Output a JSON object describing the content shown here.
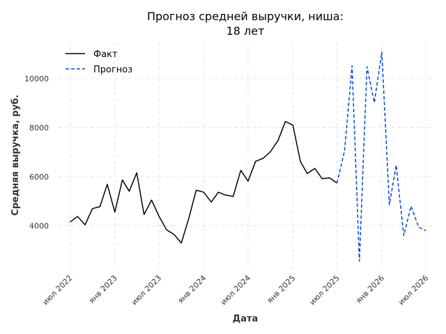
{
  "chart_data": {
    "type": "line",
    "title_lines": [
      "Прогноз средней выручки, ниша:",
      "18 лет"
    ],
    "xlabel": "Дата",
    "ylabel": "Средняя выручка, руб.",
    "ylim": [
      2200,
      11500
    ],
    "xlim": [
      "2022-05-15",
      "2026-08-01"
    ],
    "yticks": [
      4000,
      6000,
      8000,
      10000
    ],
    "xticks": [
      {
        "date": "2022-07-01",
        "label": "июл 2022"
      },
      {
        "date": "2023-01-01",
        "label": "янв 2023"
      },
      {
        "date": "2023-07-01",
        "label": "июл 2023"
      },
      {
        "date": "2024-01-01",
        "label": "янв 2024"
      },
      {
        "date": "2024-07-01",
        "label": "июл 2024"
      },
      {
        "date": "2025-01-01",
        "label": "янв 2025"
      },
      {
        "date": "2025-07-01",
        "label": "июл 2025"
      },
      {
        "date": "2026-01-01",
        "label": "янв 2026"
      },
      {
        "date": "2026-07-01",
        "label": "июл 2026"
      }
    ],
    "grid": true,
    "legend_position": "top-left",
    "series": [
      {
        "name": "Факт",
        "color": "#000000",
        "style": "solid",
        "points": [
          [
            "2022-07-01",
            4150
          ],
          [
            "2022-08-01",
            4380
          ],
          [
            "2022-09-01",
            4040
          ],
          [
            "2022-10-01",
            4700
          ],
          [
            "2022-11-01",
            4780
          ],
          [
            "2022-12-01",
            5690
          ],
          [
            "2023-01-01",
            4560
          ],
          [
            "2023-02-01",
            5870
          ],
          [
            "2023-03-01",
            5410
          ],
          [
            "2023-04-01",
            6160
          ],
          [
            "2023-05-01",
            4460
          ],
          [
            "2023-06-01",
            5050
          ],
          [
            "2023-07-01",
            4400
          ],
          [
            "2023-08-01",
            3840
          ],
          [
            "2023-09-01",
            3650
          ],
          [
            "2023-10-01",
            3300
          ],
          [
            "2023-11-01",
            4310
          ],
          [
            "2023-12-01",
            5450
          ],
          [
            "2024-01-01",
            5370
          ],
          [
            "2024-02-01",
            4970
          ],
          [
            "2024-03-01",
            5370
          ],
          [
            "2024-04-01",
            5250
          ],
          [
            "2024-05-01",
            5200
          ],
          [
            "2024-06-01",
            6260
          ],
          [
            "2024-07-01",
            5820
          ],
          [
            "2024-08-01",
            6630
          ],
          [
            "2024-09-01",
            6750
          ],
          [
            "2024-10-01",
            7020
          ],
          [
            "2024-11-01",
            7480
          ],
          [
            "2024-12-01",
            8250
          ],
          [
            "2025-01-01",
            8100
          ],
          [
            "2025-02-01",
            6620
          ],
          [
            "2025-03-01",
            6130
          ],
          [
            "2025-04-01",
            6340
          ],
          [
            "2025-05-01",
            5920
          ],
          [
            "2025-06-01",
            5950
          ],
          [
            "2025-07-01",
            5740
          ]
        ]
      },
      {
        "name": "Прогноз",
        "color": "#0044dd",
        "style": "dashed",
        "points": [
          [
            "2025-07-01",
            5740
          ],
          [
            "2025-08-01",
            7050
          ],
          [
            "2025-09-01",
            10520
          ],
          [
            "2025-10-01",
            2560
          ],
          [
            "2025-11-01",
            10480
          ],
          [
            "2025-12-01",
            9020
          ],
          [
            "2026-01-01",
            11080
          ],
          [
            "2026-02-01",
            4860
          ],
          [
            "2026-03-01",
            6470
          ],
          [
            "2026-04-01",
            3600
          ],
          [
            "2026-05-01",
            4800
          ],
          [
            "2026-06-01",
            3950
          ],
          [
            "2026-07-01",
            3800
          ]
        ]
      }
    ]
  }
}
